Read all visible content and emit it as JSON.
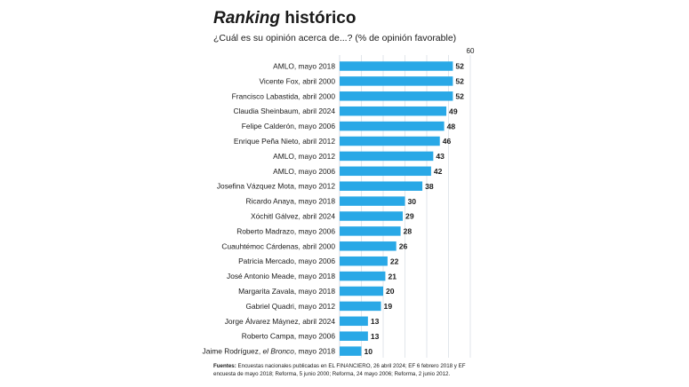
{
  "header": {
    "title_italic": "Ranking",
    "title_rest": " histórico",
    "subtitle": "¿Cuál es su opinión acerca de...? (% de opinión favorable)"
  },
  "footer": {
    "sources_label": "Fuentes:",
    "sources_text": " Encuestas nacionales publicadas en EL FINANCIERO, 26 abril 2024; EF 6 febrero 2018 y EF encuesta de mayo 2018; Reforma, 5 junio 2000; Reforma, 24 mayo 2006; Reforma, 2 junio 2012."
  },
  "colors": {
    "bar": "#29a8e6",
    "grid": "#cfd6de",
    "text": "#1a1a1a"
  },
  "chart_data": {
    "type": "bar",
    "orientation": "horizontal",
    "title": "Ranking histórico",
    "subtitle": "¿Cuál es su opinión acerca de...? (% de opinión favorable)",
    "xlim": [
      0,
      60
    ],
    "x_ticks": [
      "60"
    ],
    "grid": true,
    "categories": [
      "AMLO, mayo 2018",
      "Vicente Fox, abril 2000",
      "Francisco Labastida, abril 2000",
      "Claudia Sheinbaum, abril 2024",
      "Felipe Calderón, mayo 2006",
      "Enrique Peña Nieto, abril 2012",
      "AMLO, mayo 2012",
      "AMLO, mayo 2006",
      "Josefina Vázquez Mota, mayo 2012",
      "Ricardo Anaya, mayo 2018",
      "Xóchitl Gálvez, abril 2024",
      "Roberto Madrazo, mayo 2006",
      "Cuauhtémoc Cárdenas, abril 2000",
      "Patricia Mercado, mayo 2006",
      "José Antonio Meade, mayo 2018",
      "Margarita Zavala, mayo 2018",
      "Gabriel Quadri, mayo 2012",
      "Jorge Álvarez Máynez, abril 2024",
      "Roberto Campa, mayo 2006",
      "Jaime Rodríguez, el Bronco, mayo 2018"
    ],
    "values": [
      52,
      52,
      52,
      49,
      48,
      46,
      43,
      42,
      38,
      30,
      29,
      28,
      26,
      22,
      21,
      20,
      19,
      13,
      13,
      10
    ]
  }
}
